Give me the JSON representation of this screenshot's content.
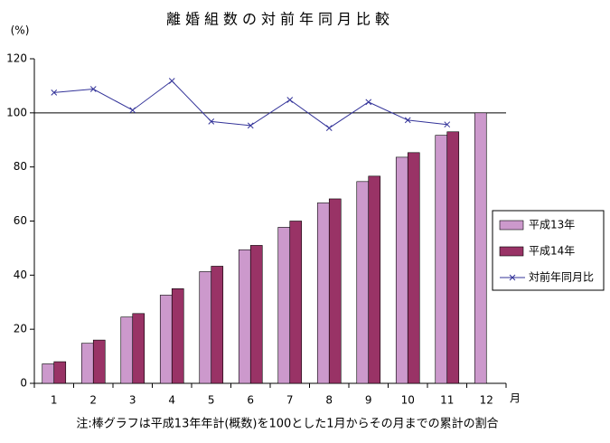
{
  "chart_data": {
    "type": "bar",
    "title": "離婚組数の対前年同月比較",
    "y_label": "(%)",
    "x_label": "月",
    "note": "注:棒グラフは平成13年年計(概数)を100とした1月からその月までの累計の割合",
    "categories": [
      "1",
      "2",
      "3",
      "4",
      "5",
      "6",
      "7",
      "8",
      "9",
      "10",
      "11",
      "12"
    ],
    "series": [
      {
        "name": "平成13年",
        "color": "#cc99cc",
        "type": "bar",
        "values": [
          7.2,
          14.8,
          24.5,
          32.6,
          41.3,
          49.4,
          57.7,
          66.7,
          74.6,
          83.6,
          91.7,
          100
        ]
      },
      {
        "name": "平成14年",
        "color": "#993366",
        "type": "bar",
        "values": [
          8.0,
          16.0,
          25.8,
          35.0,
          43.3,
          51.0,
          60.0,
          68.2,
          76.6,
          85.3,
          93.0,
          null
        ]
      },
      {
        "name": "対前年同月比",
        "color": "#333399",
        "type": "line",
        "values": [
          107.5,
          108.8,
          101.0,
          111.8,
          96.8,
          95.3,
          104.8,
          94.4,
          104.0,
          97.3,
          95.7,
          null
        ]
      }
    ],
    "reference_line": 100,
    "ylim": [
      0,
      120
    ],
    "yticks": [
      0,
      20,
      40,
      60,
      80,
      100,
      120
    ],
    "legend": "right"
  }
}
